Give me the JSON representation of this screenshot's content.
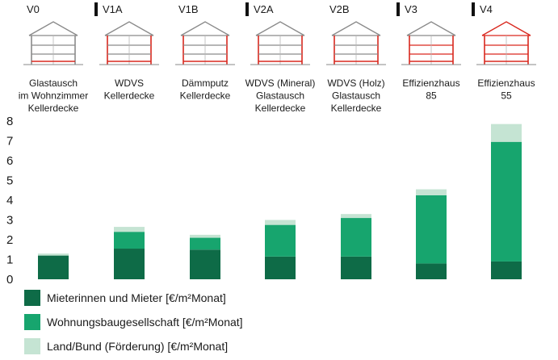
{
  "chart_data": {
    "type": "bar",
    "stacked": true,
    "categories": [
      "V0",
      "V1A",
      "V1B",
      "V2A",
      "V2B",
      "V3",
      "V4"
    ],
    "category_descriptions": [
      [
        "Glastausch",
        "im Wohnzimmer",
        "Kellerdecke"
      ],
      [
        "WDVS",
        "Kellerdecke"
      ],
      [
        "Dämmputz",
        "Kellerdecke"
      ],
      [
        "WDVS (Mineral)",
        "Glastausch",
        "Kellerdecke"
      ],
      [
        "WDVS (Holz)",
        "Glastausch",
        "Kellerdecke"
      ],
      [
        "Effizienzhaus",
        "85"
      ],
      [
        "Effizienzhaus",
        "55"
      ]
    ],
    "category_marker": [
      false,
      true,
      false,
      true,
      false,
      true,
      true
    ],
    "series": [
      {
        "name": "Mieterinnen und Mieter [€/m²Monat]",
        "color": "#0e6b47",
        "values": [
          1.2,
          1.55,
          1.5,
          1.15,
          1.15,
          0.8,
          0.9
        ]
      },
      {
        "name": "Wohnungsbaugesellschaft [€/m²Monat]",
        "color": "#17a56e",
        "values": [
          0.0,
          0.85,
          0.6,
          1.6,
          1.95,
          3.45,
          6.05
        ]
      },
      {
        "name": "Land/Bund (Förderung) [€/m²Monat]",
        "color": "#c5e4d3",
        "values": [
          0.1,
          0.25,
          0.15,
          0.25,
          0.2,
          0.3,
          0.9
        ]
      }
    ],
    "yticks": [
      0,
      1,
      2,
      3,
      4,
      5,
      6,
      7,
      8
    ],
    "ylim": [
      0,
      8
    ],
    "title": "",
    "xlabel": "",
    "ylabel": "",
    "grid": false,
    "legend_position": "bottom-left",
    "house_icon_colors": {
      "outline": "#8a8a8a",
      "highlight": "#d9281e"
    }
  }
}
